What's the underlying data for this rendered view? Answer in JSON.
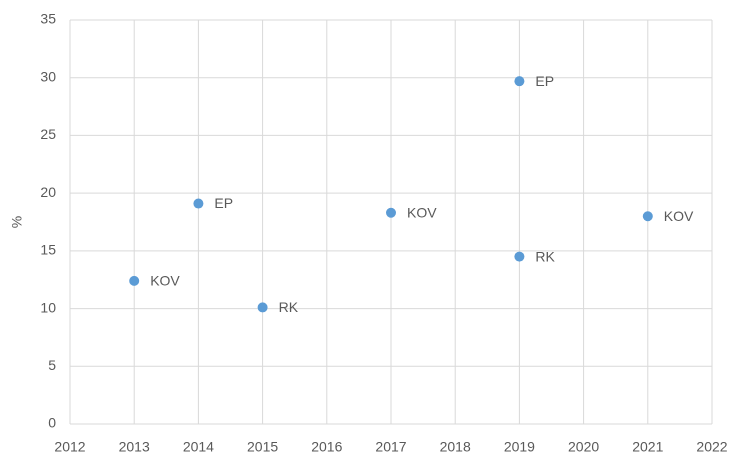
{
  "chart_data": {
    "type": "scatter",
    "y_label": "%",
    "x": [
      2013,
      2014,
      2015,
      2017,
      2019,
      2019,
      2021
    ],
    "values": [
      12.4,
      19.1,
      10.1,
      18.3,
      29.7,
      14.5,
      18.0
    ],
    "point_labels": [
      "KOV",
      "EP",
      "RK",
      "KOV",
      "EP",
      "RK",
      "KOV"
    ],
    "color": "#5b9bd5",
    "xlim": [
      2012,
      2022
    ],
    "xticks": [
      2012,
      2013,
      2014,
      2015,
      2016,
      2017,
      2018,
      2019,
      2020,
      2021,
      2022
    ],
    "ylim": [
      0,
      35
    ],
    "yticks": [
      0,
      5,
      10,
      15,
      20,
      25,
      30,
      35
    ],
    "grid": true
  }
}
